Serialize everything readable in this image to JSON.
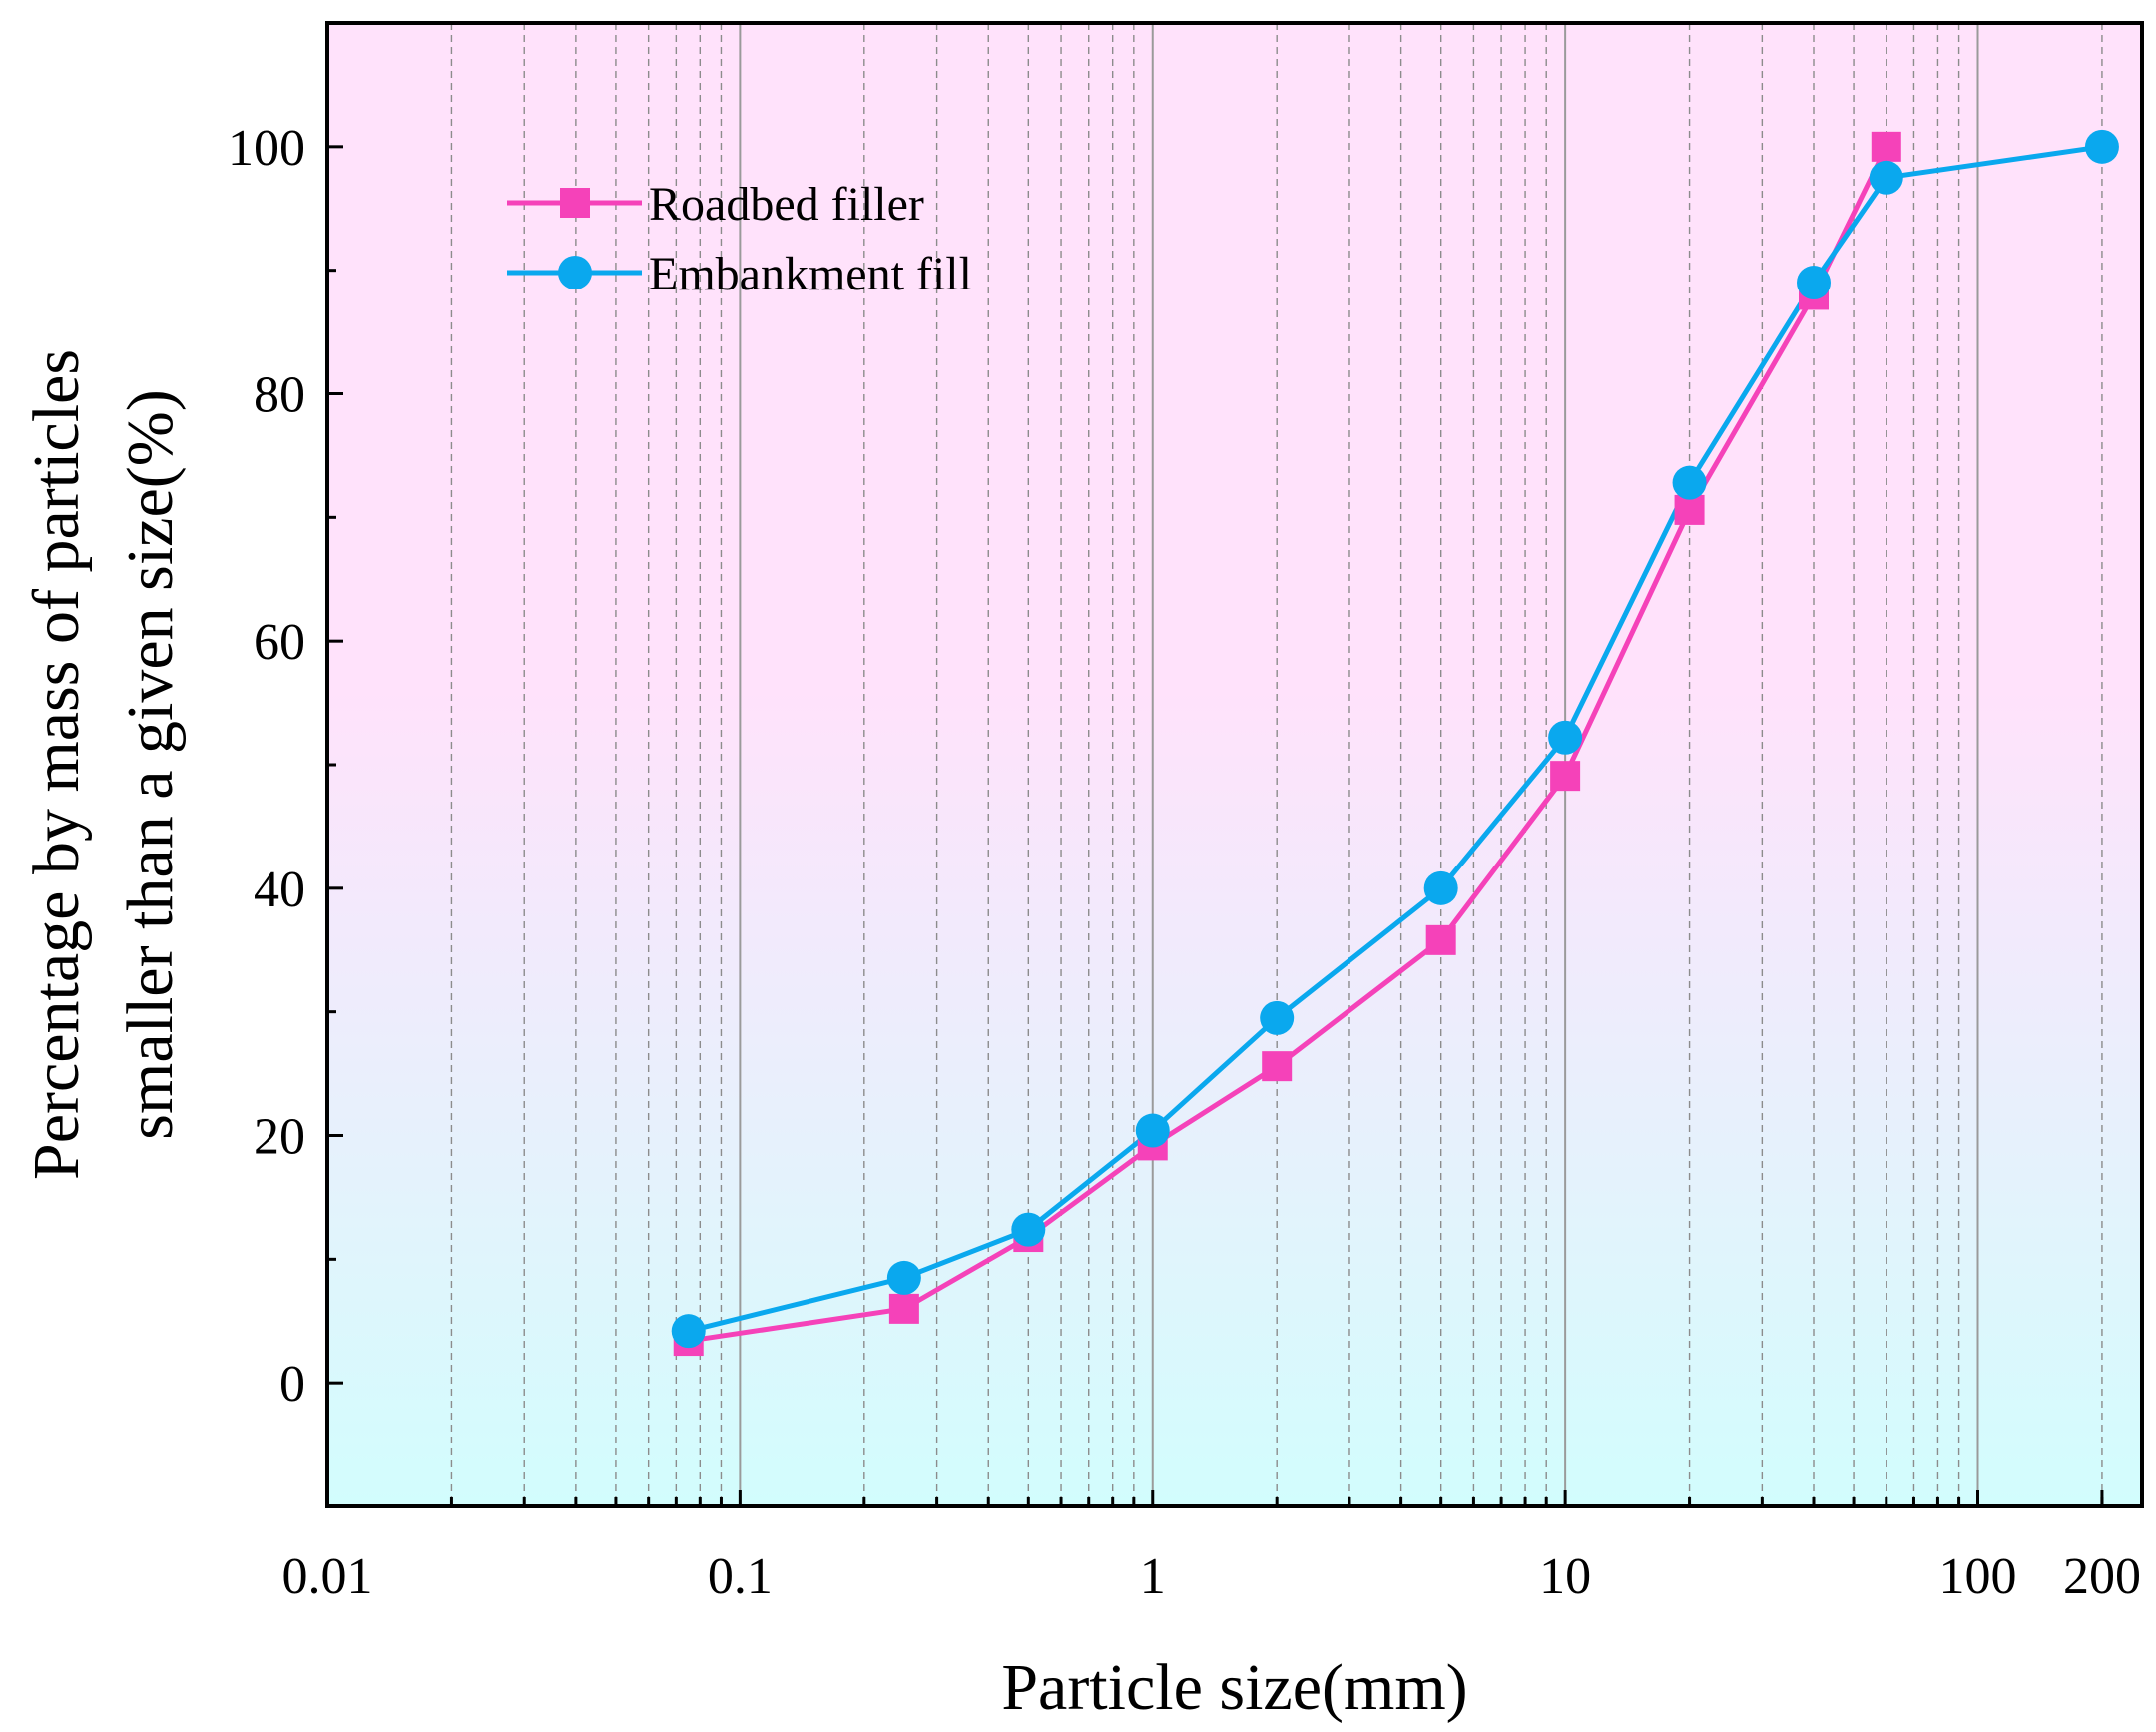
{
  "chart_data": {
    "type": "line",
    "xscale": "log",
    "xlabel": "Particle size(mm)",
    "ylabel_line1": "Percentage by mass of particles",
    "ylabel_line2": "smaller than a given size(%)",
    "xlim": [
      0.01,
      250
    ],
    "ylim": [
      -10,
      110
    ],
    "xticks": [
      {
        "value": 0.01,
        "label": "0.01"
      },
      {
        "value": 0.1,
        "label": "0.1"
      },
      {
        "value": 1,
        "label": "1"
      },
      {
        "value": 10,
        "label": "10"
      },
      {
        "value": 100,
        "label": "100"
      },
      {
        "value": 200,
        "label": "200"
      }
    ],
    "yticks": [
      {
        "value": 0,
        "label": "0"
      },
      {
        "value": 20,
        "label": "20"
      },
      {
        "value": 40,
        "label": "40"
      },
      {
        "value": 60,
        "label": "60"
      },
      {
        "value": 80,
        "label": "80"
      },
      {
        "value": 100,
        "label": "100"
      }
    ],
    "grid": "vertical log gridlines",
    "legend_position": "top-left",
    "background_gradient": {
      "top": "#ffe2fb",
      "bottom": "#d2fdfd"
    },
    "series": [
      {
        "name": "Roadbed filler",
        "color": "#f542b9",
        "marker": "square",
        "x": [
          0.075,
          0.25,
          0.5,
          1,
          2,
          5,
          10,
          20,
          40,
          60
        ],
        "y": [
          3.4,
          6.0,
          11.8,
          19.2,
          25.6,
          35.8,
          49.1,
          70.6,
          88.0,
          100
        ]
      },
      {
        "name": "Embankment fill",
        "color": "#0aa8ee",
        "marker": "circle",
        "x": [
          0.075,
          0.25,
          0.5,
          1,
          2,
          5,
          10,
          20,
          40,
          60,
          200
        ],
        "y": [
          4.2,
          8.5,
          12.4,
          20.4,
          29.5,
          40.0,
          52.2,
          72.8,
          89.0,
          97.5,
          100
        ]
      }
    ]
  }
}
